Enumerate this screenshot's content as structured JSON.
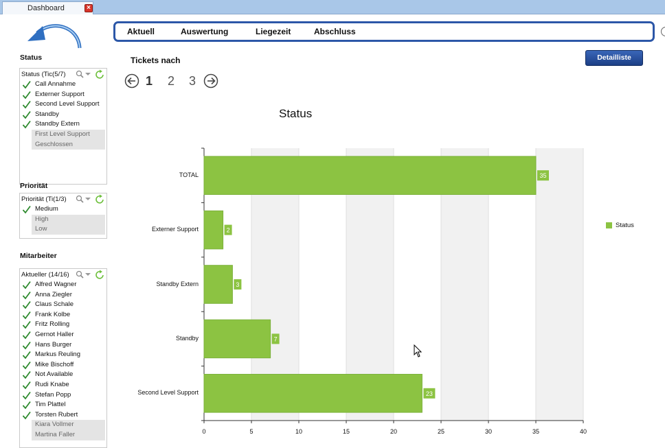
{
  "tab": {
    "label": "Dashboard",
    "close": "×"
  },
  "sidebar": {
    "status": {
      "title": "Status",
      "header": "Status (Tic(5/7)",
      "checked": [
        "Call Annahme",
        "Externer Support",
        "Second Level Support",
        "Standby",
        "Standby Extern"
      ],
      "unchecked": [
        "First Level Support",
        "Geschlossen"
      ]
    },
    "prioritaet": {
      "title": "Priorität",
      "header": "Priorität (Ti(1/3)",
      "checked": [
        "Medium"
      ],
      "unchecked": [
        "High",
        "Low"
      ]
    },
    "mitarbeiter": {
      "title": "Mitarbeiter",
      "header": "Aktueller (14/16)",
      "checked": [
        "Alfred Wagner",
        "Anna Ziegler",
        "Claus Schale",
        "Frank Kolbe",
        "Fritz Rolling",
        "Gernot Haller",
        "Hans Burger",
        "Markus Reuling",
        "Mike Bischoff",
        "Not Available",
        "Rudi Knabe",
        "Stefan Popp",
        "Tim Plattel",
        "Torsten Rubert"
      ],
      "unchecked": [
        "Kiara Vollmer",
        "Martina Faller"
      ]
    }
  },
  "nav": {
    "items": [
      "Aktuell",
      "Auswertung",
      "Liegezeit",
      "Abschluss"
    ]
  },
  "main": {
    "title": "Tickets nach",
    "detail_button": "Detailliste",
    "pager": {
      "pages": [
        "1",
        "2",
        "3"
      ],
      "current": "1"
    }
  },
  "colors": {
    "bar": "#8cc342",
    "nav_border": "#2c57a8",
    "button": "#1c3f86"
  },
  "icons": {
    "back": "back-arrow-icon",
    "search": "search-icon",
    "refresh": "refresh-icon",
    "check": "checkmark-icon"
  },
  "chart_data": {
    "type": "bar",
    "orientation": "horizontal",
    "title": "Status",
    "categories": [
      "TOTAL",
      "Externer Support",
      "Standby Extern",
      "Standby",
      "Second Level Support"
    ],
    "series": [
      {
        "name": "Status",
        "values": [
          35,
          2,
          3,
          7,
          23
        ]
      }
    ],
    "xlim": [
      0,
      40
    ],
    "xticks": [
      0,
      5,
      10,
      15,
      20,
      25,
      30,
      35,
      40
    ],
    "xlabel": "",
    "ylabel": "",
    "grid": "alternating vertical bands",
    "legend": "right"
  }
}
